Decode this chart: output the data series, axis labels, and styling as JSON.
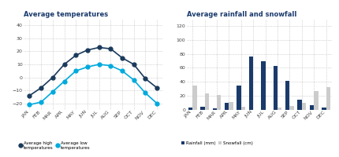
{
  "months": [
    "JAN",
    "FEB",
    "MAR",
    "APR",
    "MAY",
    "JUN",
    "JUL",
    "AUG",
    "SEP",
    "OCT",
    "NOV",
    "DEC"
  ],
  "temp_high": [
    -14,
    -8,
    0,
    10,
    17,
    21,
    23,
    22,
    15,
    10,
    -1,
    -8
  ],
  "temp_low": [
    -21,
    -19,
    -11,
    -3,
    5,
    8,
    10,
    9,
    5,
    -2,
    -12,
    -20
  ],
  "rainfall_mm": [
    3,
    4,
    2,
    10,
    35,
    76,
    70,
    63,
    42,
    15,
    7,
    3
  ],
  "snowfall_cm": [
    35,
    24,
    21,
    11,
    5,
    0,
    0,
    3,
    6,
    10,
    27,
    32
  ],
  "color_high": "#1a3a5c",
  "color_low": "#00aadd",
  "color_rain": "#1a3a6c",
  "color_snow": "#cccccc",
  "title_temp": "Average temperatures",
  "title_rain": "Average rainfall and snowfall",
  "temp_ylim": [
    -25,
    45
  ],
  "temp_yticks": [
    -20,
    -10,
    0,
    10,
    20,
    30,
    40
  ],
  "rain_ylim": [
    0,
    130
  ],
  "rain_yticks": [
    0,
    20,
    40,
    60,
    80,
    100,
    120
  ],
  "title_color": "#1a3a6c",
  "tick_color": "#444444",
  "legend_label_high": "Average high\ntemperatures",
  "legend_label_low": "Average low\ntemperatures",
  "legend_label_rain": "Rainfall (mm)",
  "legend_label_snow": "Snowfall (cm)"
}
